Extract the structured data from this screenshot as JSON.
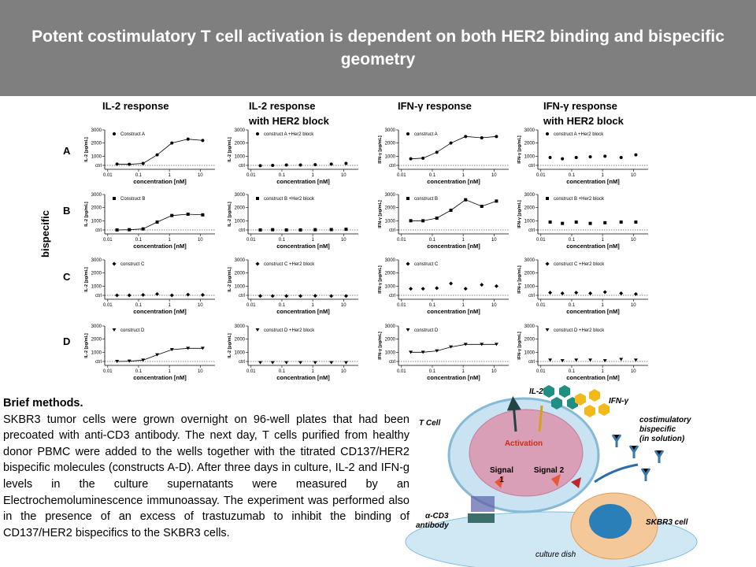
{
  "header": {
    "title": "Potent costimulatory T cell activation is dependent on both HER2 binding and bispecific geometry"
  },
  "column_headers": [
    [
      "IL-2 response"
    ],
    [
      "IL-2 response",
      "with HER2 block"
    ],
    [
      "IFN-γ response"
    ],
    [
      "IFN-γ response",
      "with HER2 block"
    ]
  ],
  "row_labels": [
    "A",
    "B",
    "C",
    "D"
  ],
  "group_label": "bispecific",
  "plot_axes": {
    "log_x": true,
    "xlim": [
      0.008,
      30
    ],
    "xticks": [
      0.01,
      0.1,
      1,
      10
    ],
    "ylim": [
      0,
      3000
    ],
    "yticks": [
      {
        "value": 300,
        "label": "ctrl"
      },
      1000,
      2000,
      3000
    ],
    "xlabel": "concentration [nM]",
    "x": [
      0.02,
      0.05,
      0.14,
      0.4,
      1.2,
      4,
      12
    ]
  },
  "panels": [
    {
      "legend": "Construct A",
      "ylabel": "IL-2 [pg/mL]",
      "marker": "circle",
      "fit": true,
      "values": [
        400,
        380,
        450,
        1100,
        2000,
        2300,
        2200
      ]
    },
    {
      "legend": "construct A +Her2 block",
      "ylabel": "IL-2 [pg/mL]",
      "marker": "circle",
      "fit": false,
      "values": [
        280,
        300,
        330,
        330,
        350,
        400,
        450
      ]
    },
    {
      "legend": "construct A",
      "ylabel": "IFN-γ [pg/mL]",
      "marker": "circle",
      "fit": true,
      "values": [
        800,
        850,
        1300,
        2000,
        2500,
        2400,
        2500
      ]
    },
    {
      "legend": "construct A +Her2 block",
      "ylabel": "IFN-γ [pg/mL]",
      "marker": "circle",
      "fit": false,
      "values": [
        900,
        800,
        900,
        950,
        1000,
        900,
        1100
      ]
    },
    {
      "legend": "Construct B",
      "ylabel": "IL-2 [pg/mL]",
      "marker": "square",
      "fit": true,
      "values": [
        300,
        320,
        380,
        900,
        1400,
        1500,
        1450
      ]
    },
    {
      "legend": "construct B +Her2 block",
      "ylabel": "IL-2 [pg/mL]",
      "marker": "square",
      "fit": false,
      "values": [
        300,
        320,
        300,
        300,
        320,
        330,
        350
      ]
    },
    {
      "legend": "construct B",
      "ylabel": "IFN-γ [pg/mL]",
      "marker": "square",
      "fit": true,
      "values": [
        1000,
        1000,
        1200,
        1800,
        2600,
        2100,
        2500
      ]
    },
    {
      "legend": "construct B +Her2 block",
      "ylabel": "IFN-γ [pg/mL]",
      "marker": "square",
      "fit": false,
      "values": [
        900,
        800,
        900,
        800,
        850,
        900,
        900
      ]
    },
    {
      "legend": "construct C",
      "ylabel": "IL-2 [pg/mL]",
      "marker": "diamond",
      "fit": false,
      "values": [
        300,
        300,
        330,
        400,
        300,
        350,
        330
      ]
    },
    {
      "legend": "construct C +Her2 block",
      "ylabel": "IL-2 [pg/mL]",
      "marker": "diamond",
      "fit": false,
      "values": [
        250,
        250,
        250,
        250,
        260,
        250,
        250
      ]
    },
    {
      "legend": "construct C",
      "ylabel": "IFN-γ [pg/mL]",
      "marker": "diamond",
      "fit": false,
      "values": [
        800,
        800,
        850,
        1200,
        800,
        1100,
        1000
      ]
    },
    {
      "legend": "construct C +Her2 block",
      "ylabel": "IFN-γ [pg/mL]",
      "marker": "diamond",
      "fit": false,
      "values": [
        500,
        450,
        500,
        450,
        550,
        450,
        400
      ]
    },
    {
      "legend": "construct D",
      "ylabel": "IL-2 [pg/mL]",
      "marker": "triangle",
      "fit": true,
      "values": [
        300,
        320,
        400,
        800,
        1200,
        1300,
        1300
      ]
    },
    {
      "legend": "construct D +Her2 block",
      "ylabel": "IL-2 [pg/mL]",
      "marker": "triangle",
      "fit": false,
      "values": [
        200,
        200,
        200,
        200,
        200,
        200,
        200
      ]
    },
    {
      "legend": "construct D",
      "ylabel": "IFN-γ [pg/mL]",
      "marker": "triangle",
      "fit": true,
      "values": [
        1000,
        1000,
        1100,
        1400,
        1600,
        1600,
        1600
      ]
    },
    {
      "legend": "construct D +Her2 block",
      "ylabel": "IFN-γ [pg/mL]",
      "marker": "triangle",
      "fit": false,
      "values": [
        400,
        350,
        400,
        400,
        350,
        450,
        400
      ]
    }
  ],
  "methods": {
    "title": "Brief methods.",
    "text": "SKBR3 tumor cells were grown overnight on 96-well plates that had been precoated with anti-CD3 antibody. The next day, T cells purified from healthy donor PBMC were added to the wells together with the titrated CD137/HER2 bispecific molecules (constructs A-D). After three days in culture, IL-2 and IFN-g levels in the culture supernatants were measured by an Electrochemoluminescence immunoassay. The experiment was performed also in the presence of an excess of trastuzumab to inhibit the binding of CD137/HER2 bispecifics to the SKBR3 cells."
  },
  "diagram": {
    "il2": "IL-2",
    "ifn": "IFN-γ",
    "t_cell": "T Cell",
    "bispecific": [
      "costimulatory",
      "bispecific",
      "(in solution)"
    ],
    "activation": "Activation",
    "signal1": [
      "Signal",
      "1"
    ],
    "signal2": "Signal 2",
    "cd3": [
      "α-CD3",
      "antibody"
    ],
    "skbr3": "SKBR3 cell",
    "dish": "culture dish"
  }
}
